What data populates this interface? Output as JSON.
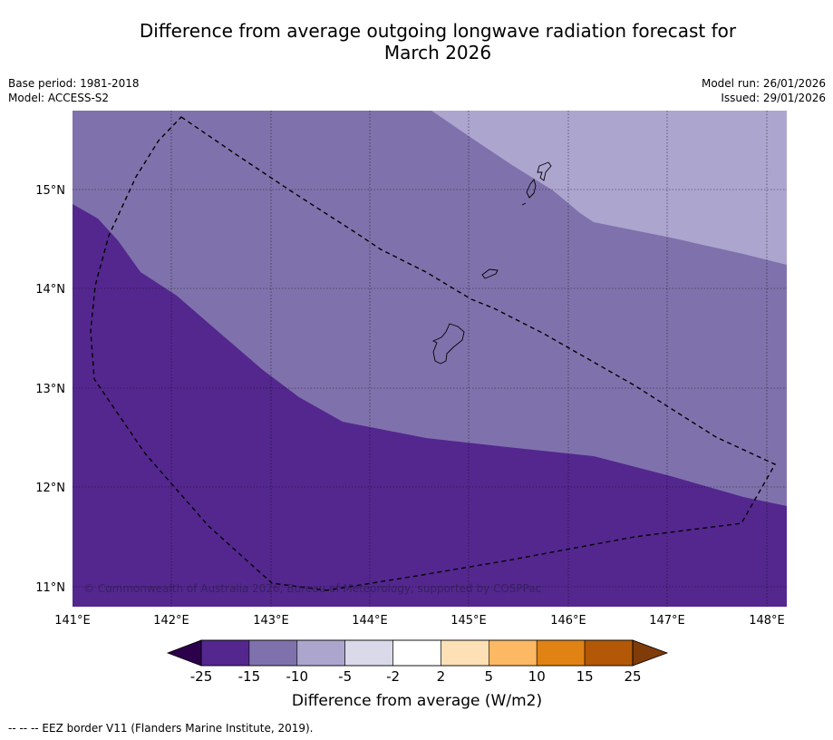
{
  "title_line1": "Difference from average outgoing longwave radiation forecast for",
  "title_line2": "March 2026",
  "base_period": "Base period: 1981-2018",
  "model": "Model: ACCESS-S2",
  "model_run": "Model run: 26/01/2026",
  "issued": "Issued: 29/01/2026",
  "copyright": "© Commonwealth of Australia 2026, Bureau of Meteorology, supported by COSPPac",
  "footer_note": "--  --  -- EEZ border V11 (Flanders Marine Institute, 2019).",
  "colorbar_label": "Difference from average (W/m2)",
  "map": {
    "lon_range": [
      141,
      148.2
    ],
    "lat_range": [
      10.8,
      15.8
    ],
    "lon_ticks": [
      "141°E",
      "142°E",
      "143°E",
      "144°E",
      "145°E",
      "146°E",
      "147°E",
      "148°E"
    ],
    "lat_ticks": [
      "15°N",
      "14°N",
      "13°N",
      "12°N",
      "11°N"
    ],
    "regions": [
      {
        "category": "-15 to -25",
        "color": "#54278f"
      },
      {
        "category": "-10 to -15",
        "color": "#7f72ac"
      },
      {
        "category": "-5 to -10",
        "color": "#aca6cf"
      }
    ]
  },
  "colorbar": {
    "ticks": [
      "-25",
      "-15",
      "-10",
      "-5",
      "-2",
      "2",
      "5",
      "10",
      "15",
      "25"
    ],
    "colors": [
      "#54278f",
      "#7f72ac",
      "#aca6cf",
      "#d9d9ea",
      "#ffffff",
      "#fde0b5",
      "#fdb863",
      "#e08214",
      "#b35806"
    ],
    "extend_low_color": "#2d004b",
    "extend_high_color": "#7f3b08"
  }
}
